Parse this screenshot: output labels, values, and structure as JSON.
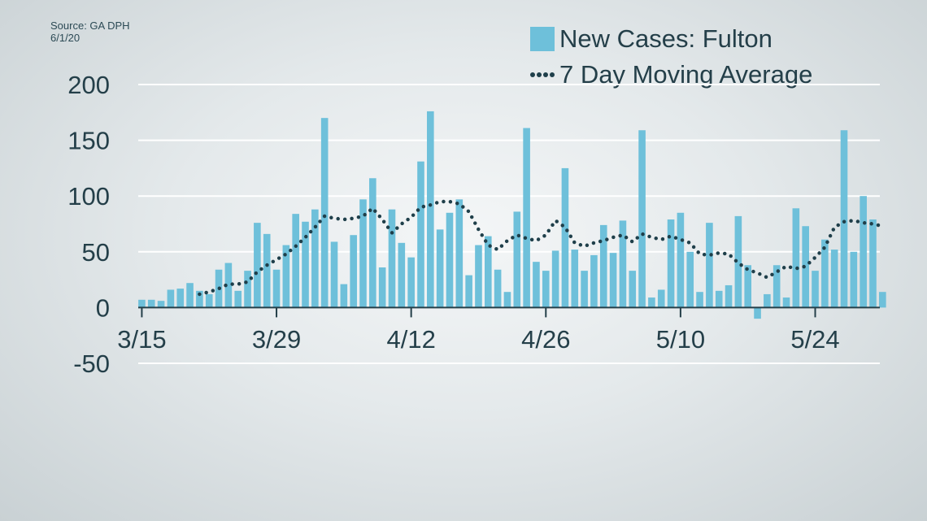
{
  "source": {
    "line1": "Source: GA DPH",
    "line2": "6/1/20"
  },
  "colors": {
    "bar": "#6ec0da",
    "line": "#1f3f4a",
    "grid": "#ffffff",
    "axis": "#243f49",
    "text": "#243f49"
  },
  "legend": {
    "bars_label": "New Cases: Fulton",
    "line_label": "7 Day Moving Average",
    "bar_icon": "square-swatch-icon",
    "line_icon": "dotted-line-icon"
  },
  "chart_data": {
    "type": "bar",
    "title": "",
    "xlabel": "",
    "ylabel": "",
    "ylim": [
      -50,
      200
    ],
    "yticks": [
      200,
      150,
      100,
      50,
      0,
      -50
    ],
    "grid": true,
    "legend_position": "top-right",
    "x_start": "3/15",
    "x_tick_labels": [
      "3/15",
      "3/29",
      "4/12",
      "4/26",
      "5/10",
      "5/24"
    ],
    "x_tick_positions": [
      "3/15",
      "3/29",
      "4/12",
      "4/26",
      "5/10",
      "5/24"
    ],
    "categories": [
      "3/15",
      "3/16",
      "3/17",
      "3/18",
      "3/19",
      "3/20",
      "3/21",
      "3/22",
      "3/23",
      "3/24",
      "3/25",
      "3/26",
      "3/27",
      "3/28",
      "3/29",
      "3/30",
      "3/31",
      "4/1",
      "4/2",
      "4/3",
      "4/4",
      "4/5",
      "4/6",
      "4/7",
      "4/8",
      "4/9",
      "4/10",
      "4/11",
      "4/12",
      "4/13",
      "4/14",
      "4/15",
      "4/16",
      "4/17",
      "4/18",
      "4/19",
      "4/20",
      "4/21",
      "4/22",
      "4/23",
      "4/24",
      "4/25",
      "4/26",
      "4/27",
      "4/28",
      "4/29",
      "4/30",
      "5/1",
      "5/2",
      "5/3",
      "5/4",
      "5/5",
      "5/6",
      "5/7",
      "5/8",
      "5/9",
      "5/10",
      "5/11",
      "5/12",
      "5/13",
      "5/14",
      "5/15",
      "5/16",
      "5/17",
      "5/18",
      "5/19",
      "5/20",
      "5/21",
      "5/22",
      "5/23",
      "5/24",
      "5/25",
      "5/26",
      "5/27",
      "5/28",
      "5/29",
      "5/30",
      "5/31"
    ],
    "series": [
      {
        "name": "New Cases: Fulton",
        "type": "bar",
        "values": [
          7,
          7,
          6,
          16,
          17,
          22,
          15,
          12,
          34,
          40,
          15,
          33,
          76,
          66,
          34,
          56,
          84,
          77,
          88,
          170,
          59,
          21,
          65,
          97,
          116,
          36,
          88,
          58,
          45,
          131,
          176,
          70,
          85,
          97,
          29,
          56,
          64,
          34,
          14,
          86,
          161,
          41,
          33,
          51,
          125,
          52,
          33,
          47,
          74,
          49,
          78,
          33,
          159,
          9,
          16,
          79,
          85,
          50,
          14,
          76,
          15,
          20,
          82,
          38,
          -10,
          12,
          38,
          9,
          89,
          73,
          33,
          61,
          52,
          159,
          50,
          100,
          79,
          14
        ]
      },
      {
        "name": "7 Day Moving Average",
        "type": "line",
        "values": [
          null,
          null,
          null,
          null,
          null,
          null,
          12,
          14,
          17,
          21,
          21,
          23,
          32,
          38,
          43,
          48,
          55,
          63,
          72,
          82,
          80,
          79,
          80,
          82,
          89,
          79,
          67,
          75,
          81,
          90,
          92,
          95,
          95,
          93,
          86,
          70,
          56,
          52,
          60,
          65,
          62,
          60,
          65,
          78,
          72,
          58,
          55,
          58,
          60,
          63,
          65,
          59,
          66,
          63,
          61,
          64,
          61,
          58,
          48,
          47,
          49,
          48,
          40,
          34,
          31,
          27,
          32,
          37,
          35,
          37,
          45,
          54,
          72,
          77,
          78,
          76,
          75,
          73
        ]
      }
    ]
  }
}
